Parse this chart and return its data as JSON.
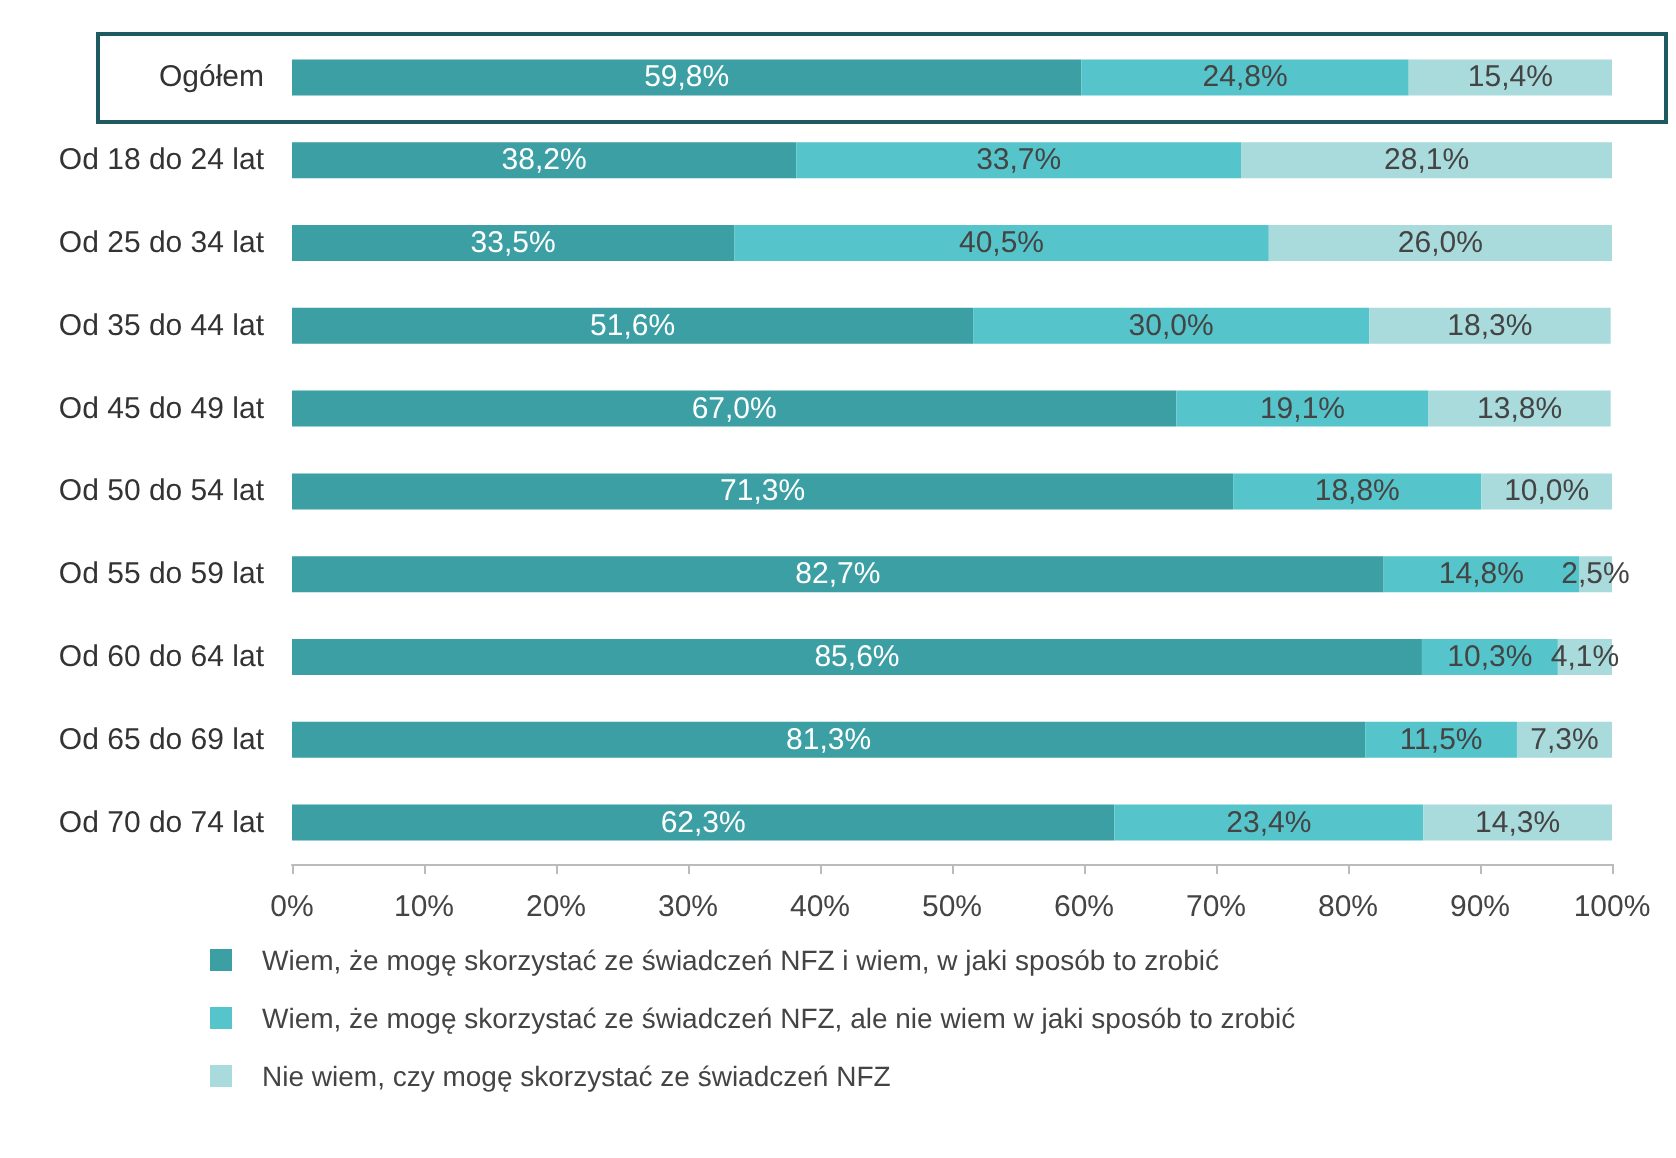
{
  "chart_data": {
    "type": "bar",
    "orientation": "horizontal",
    "stacked": true,
    "categories": [
      "Ogółem",
      "Od 18 do 24 lat",
      "Od 25 do 34 lat",
      "Od 35 do 44 lat",
      "Od 45 do 49 lat",
      "Od 50 do 54 lat",
      "Od 55 do 59 lat",
      "Od 60 do 64 lat",
      "Od 65 do 69 lat",
      "Od 70 do 74 lat"
    ],
    "series": [
      {
        "name": "Wiem, że mogę skorzystać ze świadczeń NFZ i wiem, w jaki sposób to zrobić",
        "color": "#3b9fa4",
        "values": [
          59.8,
          38.2,
          33.5,
          51.6,
          67.0,
          71.3,
          82.7,
          85.6,
          81.3,
          62.3
        ],
        "value_labels": [
          "59,8%",
          "38,2%",
          "33,5%",
          "51,6%",
          "67,0%",
          "71,3%",
          "82,7%",
          "85,6%",
          "81,3%",
          "62,3%"
        ]
      },
      {
        "name": "Wiem, że mogę skorzystać ze świadczeń NFZ, ale nie wiem w jaki sposób to zrobić",
        "color": "#56c5cb",
        "values": [
          24.8,
          33.7,
          40.5,
          30.0,
          19.1,
          18.8,
          14.8,
          10.3,
          11.5,
          23.4
        ],
        "value_labels": [
          "24,8%",
          "33,7%",
          "40,5%",
          "30,0%",
          "19,1%",
          "18,8%",
          "14,8%",
          "10,3%",
          "11,5%",
          "23,4%"
        ]
      },
      {
        "name": "Nie wiem, czy mogę skorzystać ze świadczeń NFZ",
        "color": "#a9dadc",
        "values": [
          15.4,
          28.1,
          26.0,
          18.3,
          13.8,
          10.0,
          2.5,
          4.1,
          7.3,
          14.3
        ],
        "value_labels": [
          "15,4%",
          "28,1%",
          "26,0%",
          "18,3%",
          "13,8%",
          "10,0%",
          "2,5%",
          "4,1%",
          "7,3%",
          "14,3%"
        ]
      }
    ],
    "xlim": [
      0,
      100
    ],
    "xticks": [
      {
        "value": 0,
        "label": "0%"
      },
      {
        "value": 10,
        "label": "10%"
      },
      {
        "value": 20,
        "label": "20%"
      },
      {
        "value": 30,
        "label": "30%"
      },
      {
        "value": 40,
        "label": "40%"
      },
      {
        "value": 50,
        "label": "50%"
      },
      {
        "value": 60,
        "label": "60%"
      },
      {
        "value": 70,
        "label": "70%"
      },
      {
        "value": 80,
        "label": "80%"
      },
      {
        "value": 90,
        "label": "90%"
      },
      {
        "value": 100,
        "label": "100%"
      }
    ],
    "grid": false,
    "legend": "bottom"
  }
}
